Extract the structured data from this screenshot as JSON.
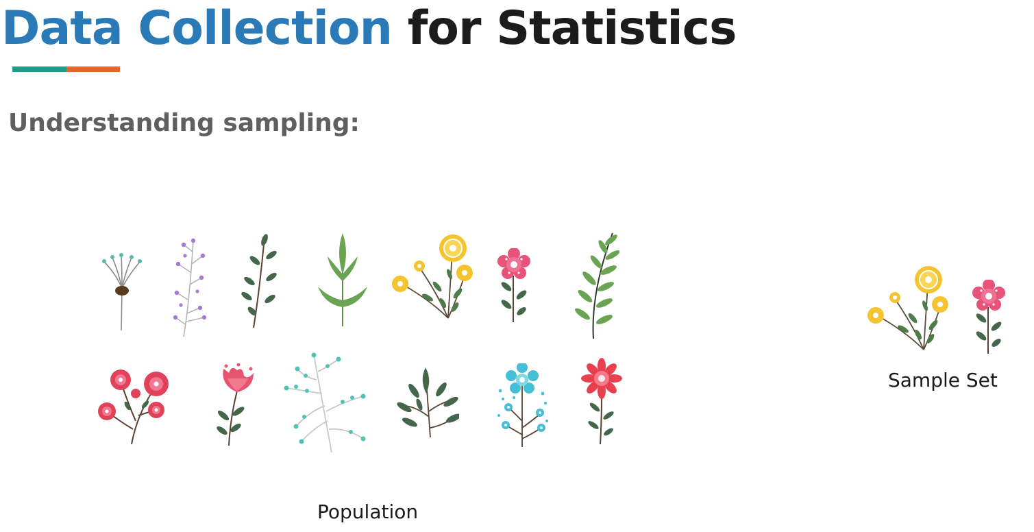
{
  "slide": {
    "title_part1": "Data Collection",
    "title_part2": " for Statistics",
    "accent_colors": [
      "#1f9c8c",
      "#e4662a"
    ],
    "title_color": "#2a7ab8",
    "subtitle": "Understanding sampling:"
  },
  "population": {
    "label": "Population",
    "plants": [
      {
        "name": "dandelion-stem-icon"
      },
      {
        "name": "purple-berry-branch-icon"
      },
      {
        "name": "dark-leaf-branch-icon"
      },
      {
        "name": "green-leaf-sprig-icon"
      },
      {
        "name": "yellow-flower-bouquet-icon"
      },
      {
        "name": "pink-flower-icon"
      },
      {
        "name": "fern-frond-icon"
      },
      {
        "name": "red-flower-cluster-icon"
      },
      {
        "name": "red-tulip-icon"
      },
      {
        "name": "teal-berry-branch-icon"
      },
      {
        "name": "leafy-sprig-icon"
      },
      {
        "name": "blue-flower-icon"
      },
      {
        "name": "red-daisy-icon"
      }
    ]
  },
  "sample_set": {
    "label": "Sample Set",
    "plants": [
      {
        "name": "yellow-flower-bouquet-icon"
      },
      {
        "name": "pink-flower-icon"
      }
    ]
  }
}
